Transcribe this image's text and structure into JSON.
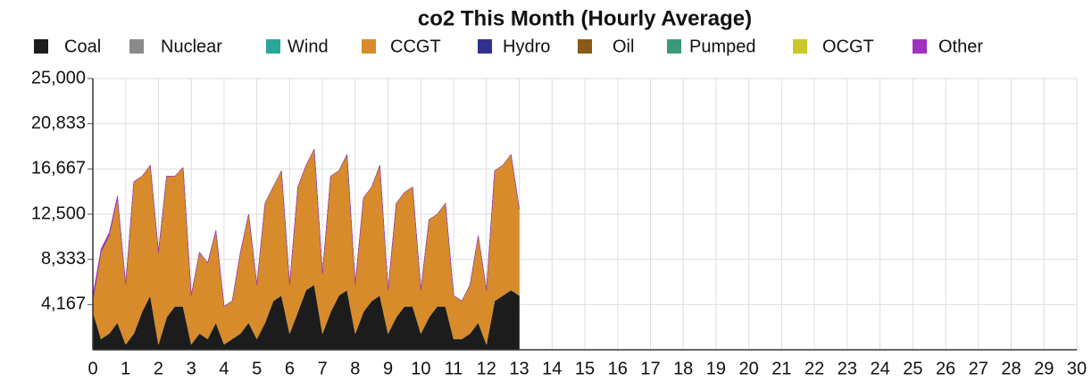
{
  "chart_data": {
    "type": "stacked_area",
    "title": "co2 This Month (Hourly Average)",
    "xlim": [
      0,
      30
    ],
    "ylim": [
      0,
      25000
    ],
    "xticks": [
      0,
      1,
      2,
      3,
      4,
      5,
      6,
      7,
      8,
      9,
      10,
      11,
      12,
      13,
      14,
      15,
      16,
      17,
      18,
      19,
      20,
      21,
      22,
      23,
      24,
      25,
      26,
      27,
      28,
      29,
      30
    ],
    "yticks": [
      {
        "value": 4167,
        "label": "4,167"
      },
      {
        "value": 8333,
        "label": "8,333"
      },
      {
        "value": 12500,
        "label": "12,500"
      },
      {
        "value": 16667,
        "label": "16,667"
      },
      {
        "value": 20833,
        "label": "20,833"
      },
      {
        "value": 25000,
        "label": "25,000"
      }
    ],
    "grid": true,
    "legend": "top",
    "x": [
      0,
      0.25,
      0.5,
      0.75,
      1,
      1.25,
      1.5,
      1.75,
      2,
      2.25,
      2.5,
      2.75,
      3,
      3.25,
      3.5,
      3.75,
      4,
      4.25,
      4.5,
      4.75,
      5,
      5.25,
      5.5,
      5.75,
      6,
      6.25,
      6.5,
      6.75,
      7,
      7.25,
      7.5,
      7.75,
      8,
      8.25,
      8.5,
      8.75,
      9,
      9.25,
      9.5,
      9.75,
      10,
      10.25,
      10.5,
      10.75,
      11,
      11.25,
      11.5,
      11.75,
      12,
      12.25,
      12.5,
      12.75,
      13
    ],
    "series": [
      {
        "name": "Coal",
        "color": "#1c1c1c",
        "values": [
          3500,
          1000,
          1500,
          2500,
          500,
          1500,
          3500,
          5000,
          500,
          3000,
          4000,
          4000,
          500,
          1500,
          1000,
          2500,
          500,
          1000,
          1500,
          2500,
          1000,
          2500,
          4500,
          5000,
          1500,
          3500,
          5500,
          6000,
          1500,
          3500,
          5000,
          5500,
          1500,
          3500,
          4500,
          5000,
          1500,
          3000,
          4000,
          4000,
          1500,
          3000,
          4000,
          4000,
          1000,
          1000,
          1500,
          2500,
          500,
          4500,
          5000,
          5500,
          5000
        ]
      },
      {
        "name": "Nuclear",
        "color": "#8a8a8a",
        "values": [
          0,
          0,
          0,
          0,
          0,
          0,
          0,
          0,
          0,
          0,
          0,
          0,
          0,
          0,
          0,
          0,
          0,
          0,
          0,
          0,
          0,
          0,
          0,
          0,
          0,
          0,
          0,
          0,
          0,
          0,
          0,
          0,
          0,
          0,
          0,
          0,
          0,
          0,
          0,
          0,
          0,
          0,
          0,
          0,
          0,
          0,
          0,
          0,
          0,
          0,
          0,
          0,
          0
        ]
      },
      {
        "name": "Wind",
        "color": "#2aa69a",
        "values": [
          0,
          0,
          0,
          0,
          0,
          0,
          0,
          0,
          0,
          0,
          0,
          0,
          0,
          0,
          0,
          0,
          0,
          0,
          0,
          0,
          0,
          0,
          0,
          0,
          0,
          0,
          0,
          0,
          0,
          0,
          0,
          0,
          0,
          0,
          0,
          0,
          0,
          0,
          0,
          0,
          0,
          0,
          0,
          0,
          0,
          0,
          0,
          0,
          0,
          0,
          0,
          0,
          0
        ]
      },
      {
        "name": "CCGT",
        "color": "#d88b2b",
        "values": [
          1000,
          8000,
          9000,
          11500,
          5500,
          14000,
          12500,
          12000,
          8500,
          13000,
          12000,
          12800,
          4500,
          7500,
          7000,
          8500,
          3500,
          3500,
          7500,
          10000,
          5000,
          11000,
          10500,
          11500,
          4500,
          11500,
          11500,
          12500,
          5500,
          12500,
          11500,
          12500,
          4500,
          10500,
          10500,
          12000,
          4000,
          10500,
          10500,
          11000,
          4000,
          9000,
          8500,
          9500,
          4000,
          3500,
          4500,
          8000,
          5000,
          12000,
          12000,
          12500,
          8000
        ]
      },
      {
        "name": "Hydro",
        "color": "#2e3192",
        "values": [
          0,
          0,
          0,
          0,
          0,
          0,
          0,
          0,
          0,
          0,
          0,
          0,
          0,
          0,
          0,
          0,
          0,
          0,
          0,
          0,
          0,
          0,
          0,
          0,
          0,
          0,
          0,
          0,
          0,
          0,
          0,
          0,
          0,
          0,
          0,
          0,
          0,
          0,
          0,
          0,
          0,
          0,
          0,
          0,
          0,
          0,
          0,
          0,
          0,
          0,
          0,
          0,
          0
        ]
      },
      {
        "name": "Oil",
        "color": "#8b5a16",
        "values": [
          0,
          0,
          0,
          0,
          0,
          0,
          0,
          0,
          0,
          0,
          0,
          0,
          0,
          0,
          0,
          0,
          0,
          0,
          0,
          0,
          0,
          0,
          0,
          0,
          0,
          0,
          0,
          0,
          0,
          0,
          0,
          0,
          0,
          0,
          0,
          0,
          0,
          0,
          0,
          0,
          0,
          0,
          0,
          0,
          0,
          0,
          0,
          0,
          0,
          0,
          0,
          0,
          0
        ]
      },
      {
        "name": "Pumped",
        "color": "#3a9a78",
        "values": [
          0,
          0,
          0,
          0,
          0,
          0,
          0,
          0,
          0,
          0,
          0,
          0,
          0,
          0,
          0,
          0,
          0,
          0,
          0,
          0,
          0,
          0,
          0,
          0,
          0,
          0,
          0,
          0,
          0,
          0,
          0,
          0,
          0,
          0,
          0,
          0,
          0,
          0,
          0,
          0,
          0,
          0,
          0,
          0,
          0,
          0,
          0,
          0,
          0,
          0,
          0,
          0,
          0
        ]
      },
      {
        "name": "OCGT",
        "color": "#c8c82a",
        "values": [
          0,
          0,
          0,
          0,
          0,
          0,
          0,
          0,
          0,
          0,
          0,
          0,
          0,
          0,
          0,
          0,
          0,
          0,
          0,
          0,
          0,
          0,
          0,
          0,
          0,
          0,
          0,
          0,
          0,
          0,
          0,
          0,
          0,
          0,
          0,
          0,
          0,
          0,
          0,
          0,
          0,
          0,
          0,
          0,
          0,
          0,
          0,
          0,
          0,
          0,
          0,
          0,
          0
        ]
      },
      {
        "name": "Other",
        "color": "#a030c0",
        "values": [
          500,
          300,
          300,
          200,
          0,
          0,
          0,
          0,
          0,
          0,
          0,
          0,
          0,
          0,
          0,
          0,
          0,
          0,
          0,
          0,
          0,
          0,
          0,
          0,
          0,
          0,
          0,
          0,
          0,
          0,
          0,
          0,
          0,
          0,
          0,
          0,
          0,
          0,
          0,
          0,
          0,
          0,
          0,
          0,
          0,
          0,
          0,
          0,
          0,
          0,
          0,
          0,
          0
        ]
      }
    ]
  }
}
